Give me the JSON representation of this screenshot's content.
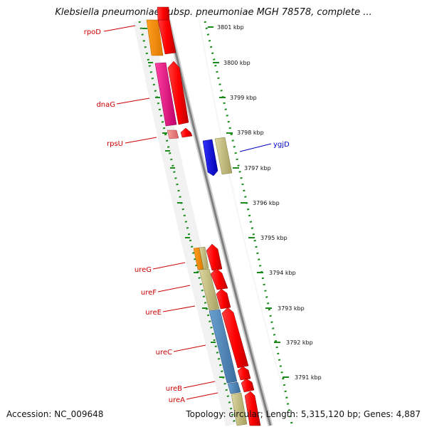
{
  "title": "Klebsiella pneumoniae subsp. pneumoniae MGH 78578, complete ...",
  "accession_text": "Accession: NC_009648",
  "summary_text": "Topology: circular; Length: 5,315,120 bp; Genes: 4,887",
  "map": {
    "colors": {
      "backbone_dark": "#808080",
      "backbone_light": "#d0d0d0",
      "tick_green": "#1a8a1a",
      "label_red": "#cc0000",
      "label_blue": "#0000cc"
    },
    "ticks": [
      "3801 kbp",
      "3800 kbp",
      "3799 kbp",
      "3798 kbp",
      "3797 kbp",
      "3796 kbp",
      "3795 kbp",
      "3794 kbp",
      "3793 kbp",
      "3792 kbp",
      "3791 kbp"
    ],
    "gene_labels": [
      {
        "name": "rpoD",
        "color": "#cc0000",
        "icon": "gene-feature"
      },
      {
        "name": "dnaG",
        "color": "#cc0000",
        "icon": "gene-feature"
      },
      {
        "name": "rpsU",
        "color": "#cc0000",
        "icon": "gene-feature"
      },
      {
        "name": "ygjD",
        "color": "#0000cc",
        "icon": "gene-feature"
      },
      {
        "name": "ureG",
        "color": "#cc0000",
        "icon": "gene-feature"
      },
      {
        "name": "ureF",
        "color": "#cc0000",
        "icon": "gene-feature"
      },
      {
        "name": "ureE",
        "color": "#cc0000",
        "icon": "gene-feature"
      },
      {
        "name": "ureC",
        "color": "#cc0000",
        "icon": "gene-feature"
      },
      {
        "name": "ureB",
        "color": "#cc0000",
        "icon": "gene-feature"
      },
      {
        "name": "ureA",
        "color": "#cc0000",
        "icon": "gene-feature"
      }
    ],
    "feature_colors": {
      "orange": "#ff8c00",
      "magenta": "#e6007e",
      "pink": "#f08080",
      "olive": "#c8c080",
      "blue_cds": "#0000ee",
      "steelblue": "#4682b4",
      "red_arrow": "#ff0000"
    }
  }
}
